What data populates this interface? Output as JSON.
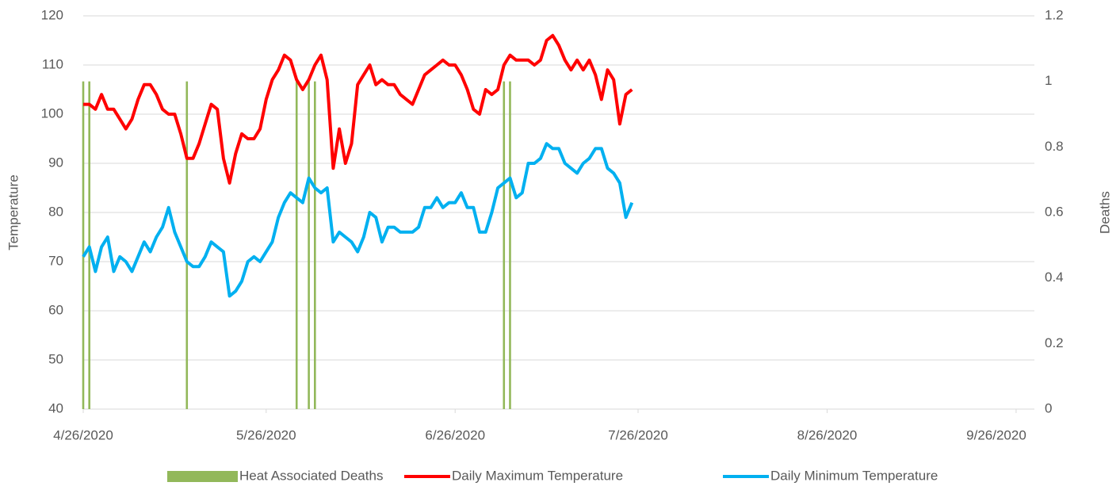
{
  "chart_data": {
    "type": "combo",
    "y_label": "Temperature",
    "y2_label": "Deaths",
    "xlim": [
      "4/26/2020",
      "9/29/2020"
    ],
    "xticks": [
      "4/26/2020",
      "5/26/2020",
      "6/26/2020",
      "7/26/2020",
      "8/26/2020",
      "9/26/2020"
    ],
    "ylim": [
      40,
      120
    ],
    "yticks": [
      40,
      50,
      60,
      70,
      80,
      90,
      100,
      110,
      120
    ],
    "y2lim": [
      0,
      1.2
    ],
    "y2ticks": [
      0,
      0.2,
      0.4,
      0.6,
      0.8,
      1,
      1.2
    ],
    "grid": true,
    "series": [
      {
        "name": "Heat Associated Deaths",
        "type": "bar",
        "axis": "y2",
        "color": "#92b85a",
        "x": [
          "4/26/2020",
          "4/27/2020",
          "5/13/2020",
          "5/31/2020",
          "6/2/2020",
          "6/3/2020",
          "7/4/2020",
          "7/5/2020"
        ],
        "values": [
          1,
          1,
          1,
          1,
          1,
          1,
          1,
          1
        ]
      },
      {
        "name": "Daily Maximum Temperature",
        "type": "line",
        "color": "#ff0000",
        "x_start": "4/26/2020",
        "values": [
          102,
          102,
          101,
          104,
          101,
          101,
          99,
          97,
          99,
          103,
          106,
          106,
          104,
          101,
          100,
          100,
          96,
          91,
          91,
          94,
          98,
          102,
          101,
          91,
          86,
          92,
          96,
          95,
          95,
          97,
          103,
          107,
          109,
          112,
          111,
          107,
          105,
          107,
          110,
          112,
          107,
          89,
          97,
          90,
          94,
          106,
          108,
          110,
          106,
          107,
          106,
          106,
          104,
          103,
          102,
          105,
          108,
          109,
          110,
          111,
          110,
          110,
          108,
          105,
          101,
          100,
          105,
          104,
          105,
          110,
          112,
          111,
          111,
          111,
          110,
          111,
          115,
          116,
          114,
          111,
          109,
          111,
          109,
          111,
          108,
          103,
          109,
          107,
          98,
          104,
          105
        ]
      },
      {
        "name": "Daily Minimum Temperature",
        "type": "line",
        "color": "#00b0f0",
        "x_start": "4/26/2020",
        "values": [
          71,
          73,
          68,
          73,
          75,
          68,
          71,
          70,
          68,
          71,
          74,
          72,
          75,
          77,
          81,
          76,
          73,
          70,
          69,
          69,
          71,
          74,
          73,
          72,
          63,
          64,
          66,
          70,
          71,
          70,
          72,
          74,
          79,
          82,
          84,
          83,
          82,
          87,
          85,
          84,
          85,
          74,
          76,
          75,
          74,
          72,
          75,
          80,
          79,
          74,
          77,
          77,
          76,
          76,
          76,
          77,
          81,
          81,
          83,
          81,
          82,
          82,
          84,
          81,
          81,
          76,
          76,
          80,
          85,
          86,
          87,
          83,
          84,
          90,
          90,
          91,
          94,
          93,
          93,
          90,
          89,
          88,
          90,
          91,
          93,
          93,
          89,
          88,
          86,
          79,
          82
        ]
      }
    ]
  }
}
